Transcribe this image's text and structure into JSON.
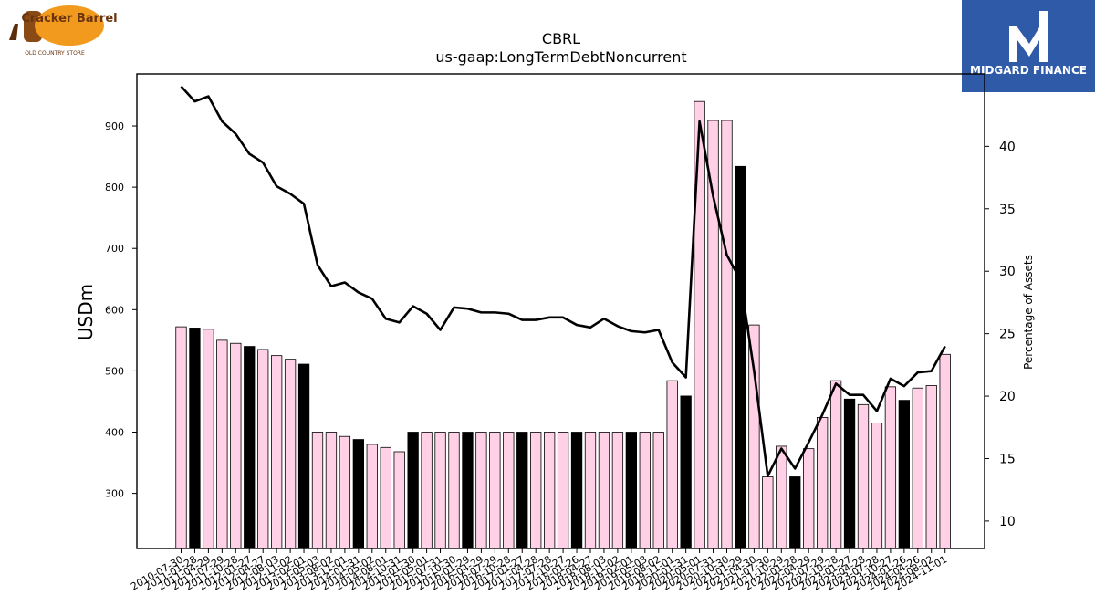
{
  "header": {
    "company_logo_text": "Cracker Barrel",
    "company_logo_subtext": "OLD COUNTRY STORE",
    "finance_logo_text": "MIDGARD FINANCE"
  },
  "colors": {
    "bar_pink": "#ffd0e6",
    "bar_black": "#000000",
    "line": "#000000",
    "finance_logo_bg": "#2f5aa8",
    "cracker_barrel_orange": "#f29a1e",
    "cracker_barrel_brown": "#6b3410"
  },
  "chart_data": {
    "type": "bar",
    "title": "CBRL",
    "subtitle": "us-gaap:LongTermDebtNoncurrent",
    "ylabel": "USDm",
    "y2label": "Percentage of Assets",
    "ylim": [
      210,
      985
    ],
    "y2lim": [
      7.8,
      45.8
    ],
    "yticks": [
      300,
      400,
      500,
      600,
      700,
      800,
      900
    ],
    "y2ticks": [
      10,
      15,
      20,
      25,
      30,
      35,
      40
    ],
    "grid": false,
    "categories": [
      "2010-07-30",
      "2011-01-28",
      "2011-04-29",
      "2011-07-29",
      "2011-10-28",
      "2012-01-27",
      "2012-04-27",
      "2012-08-03",
      "2012-11-02",
      "2013-02-01",
      "2013-05-03",
      "2013-08-02",
      "2013-11-01",
      "2014-01-31",
      "2014-05-02",
      "2014-08-01",
      "2014-10-31",
      "2015-01-30",
      "2015-05-01",
      "2015-07-31",
      "2015-10-30",
      "2016-01-29",
      "2016-04-29",
      "2016-07-29",
      "2016-10-28",
      "2017-01-27",
      "2017-04-28",
      "2017-07-28",
      "2017-10-27",
      "2018-01-26",
      "2018-04-27",
      "2018-08-03",
      "2018-11-02",
      "2019-02-01",
      "2019-05-03",
      "2019-08-02",
      "2019-11-01",
      "2020-01-31",
      "2020-05-01",
      "2020-07-31",
      "2020-10-30",
      "2021-01-29",
      "2021-04-30",
      "2021-07-30",
      "2021-10-29",
      "2022-01-28",
      "2022-04-29",
      "2022-07-29",
      "2022-10-28",
      "2023-01-27",
      "2023-04-28",
      "2023-07-28",
      "2023-10-27",
      "2024-01-26",
      "2024-04-26",
      "2024-08-02",
      "2024-11-01"
    ],
    "xtick_labels": [
      "2010-07-30",
      "2011-01-28",
      "2011-04-29",
      "2011-07-29",
      "2011-10-28",
      "2012-01-27",
      "2012-04-27",
      "2012-08-03",
      "2012-11-02",
      "2013-02-01",
      "2013-05-03",
      "2013-08-02",
      "2013-11-01",
      "2014-01-31",
      "2014-05-02",
      "2014-08-01",
      "2014-10-31",
      "2015-01-30",
      "2015-05-01",
      "2015-07-31",
      "2015-10-30",
      "2016-01-29",
      "2016-04-29",
      "2016-07-29",
      "2016-10-28",
      "2017-01-27",
      "2017-04-28",
      "2017-07-28",
      "2017-10-27",
      "2018-01-26",
      "2018-04-27",
      "2018-08-03",
      "2018-11-02",
      "2019-02-01",
      "2019-05-03",
      "2019-08-02",
      "2019-11-01",
      "2020-01-31",
      "2020-05-01",
      "2020-07-31",
      "2020-10-30",
      "2021-01-29",
      "2021-04-30",
      "2021-07-30",
      "2021-10-29",
      "2022-01-28",
      "2022-04-29",
      "2022-07-29",
      "2022-10-28",
      "2023-01-27",
      "2023-04-28",
      "2023-07-28",
      "2023-10-27",
      "2024-01-26",
      "2024-04-26",
      "2024-08-02",
      "2024-11-01"
    ],
    "series": [
      {
        "type": "bar",
        "values": [
          572,
          570,
          568,
          550,
          545,
          540,
          535,
          525,
          519,
          511,
          400,
          400,
          393,
          388,
          380,
          375,
          368,
          400,
          400,
          400,
          400,
          400,
          400,
          400,
          400,
          400,
          400,
          400,
          400,
          400,
          400,
          400,
          400,
          400,
          400,
          400,
          484,
          459,
          940,
          909,
          909,
          834,
          575,
          327,
          377,
          327,
          373,
          424,
          484,
          454,
          445,
          415,
          474,
          452,
          472,
          476,
          527
        ],
        "colors": [
          "pink",
          "black",
          "pink",
          "pink",
          "pink",
          "black",
          "pink",
          "pink",
          "pink",
          "black",
          "pink",
          "pink",
          "pink",
          "black",
          "pink",
          "pink",
          "pink",
          "black",
          "pink",
          "pink",
          "pink",
          "black",
          "pink",
          "pink",
          "pink",
          "black",
          "pink",
          "pink",
          "pink",
          "black",
          "pink",
          "pink",
          "pink",
          "black",
          "pink",
          "pink",
          "pink",
          "black",
          "pink",
          "pink",
          "pink",
          "black",
          "pink",
          "pink",
          "pink",
          "black",
          "pink",
          "pink",
          "pink",
          "black",
          "pink",
          "pink",
          "pink",
          "black",
          "pink",
          "pink",
          "pink"
        ]
      },
      {
        "type": "line",
        "axis": "right",
        "values": [
          44.8,
          43.6,
          44.0,
          42.0,
          41.0,
          39.4,
          38.7,
          36.8,
          36.2,
          35.4,
          30.5,
          28.8,
          29.1,
          28.3,
          27.8,
          26.2,
          25.9,
          27.2,
          26.6,
          25.3,
          27.1,
          27.0,
          26.7,
          26.7,
          26.6,
          26.1,
          26.1,
          26.3,
          26.3,
          25.7,
          25.5,
          26.2,
          25.6,
          25.2,
          25.1,
          25.3,
          22.7,
          21.5,
          42.0,
          36.0,
          31.3,
          29.3,
          22.0,
          13.6,
          15.8,
          14.2,
          16.3,
          18.5,
          21.0,
          20.1,
          20.1,
          18.8,
          21.4,
          20.8,
          21.9,
          22.0,
          24.0
        ]
      }
    ]
  }
}
